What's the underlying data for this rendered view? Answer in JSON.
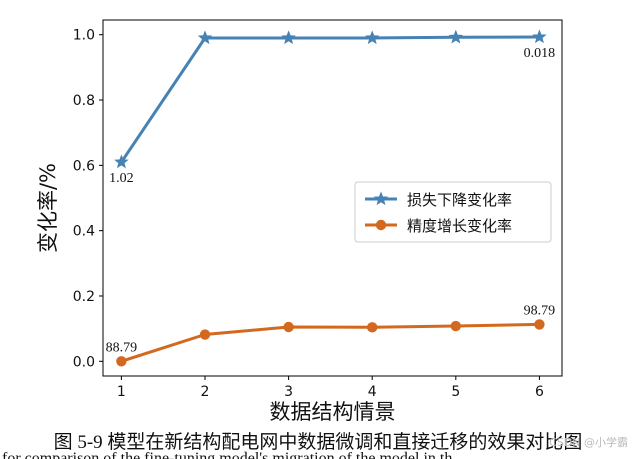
{
  "chart_data": {
    "type": "line",
    "x": [
      1,
      2,
      3,
      4,
      5,
      6
    ],
    "xticks": [
      "1",
      "2",
      "3",
      "4",
      "5",
      "6"
    ],
    "yticks": [
      "0.0",
      "0.2",
      "0.4",
      "0.6",
      "0.8",
      "1.0"
    ],
    "xlim": [
      0.78,
      6.27
    ],
    "ylim": [
      -0.045,
      1.045
    ],
    "xlabel": "数据结构情景",
    "ylabel": "变化率/%",
    "legend_location": "center-right",
    "series": [
      {
        "name": "损失下降变化率",
        "values": [
          0.61,
          0.99,
          0.99,
          0.99,
          0.992,
          0.993
        ],
        "color": "#4682b4",
        "marker": "star"
      },
      {
        "name": "精度增长变化率",
        "values": [
          0.0,
          0.082,
          0.105,
          0.104,
          0.108,
          0.113
        ],
        "color": "#d2691e",
        "marker": "circle"
      }
    ],
    "annotations": [
      {
        "text": "1.02",
        "series": 0,
        "x": 1,
        "position": "below"
      },
      {
        "text": "0.018",
        "series": 0,
        "x": 6,
        "position": "below"
      },
      {
        "text": "88.79",
        "series": 1,
        "x": 1,
        "position": "above"
      },
      {
        "text": "98.79",
        "series": 1,
        "x": 6,
        "position": "above"
      }
    ]
  },
  "figure": {
    "caption": "图 5-9 模型在新结构配电网中数据微调和直接迁移的效果对比图",
    "caption_sub": "for comparison of the fine-tuning model's migration of the model in th",
    "watermark": "CSDN @小学霸"
  }
}
